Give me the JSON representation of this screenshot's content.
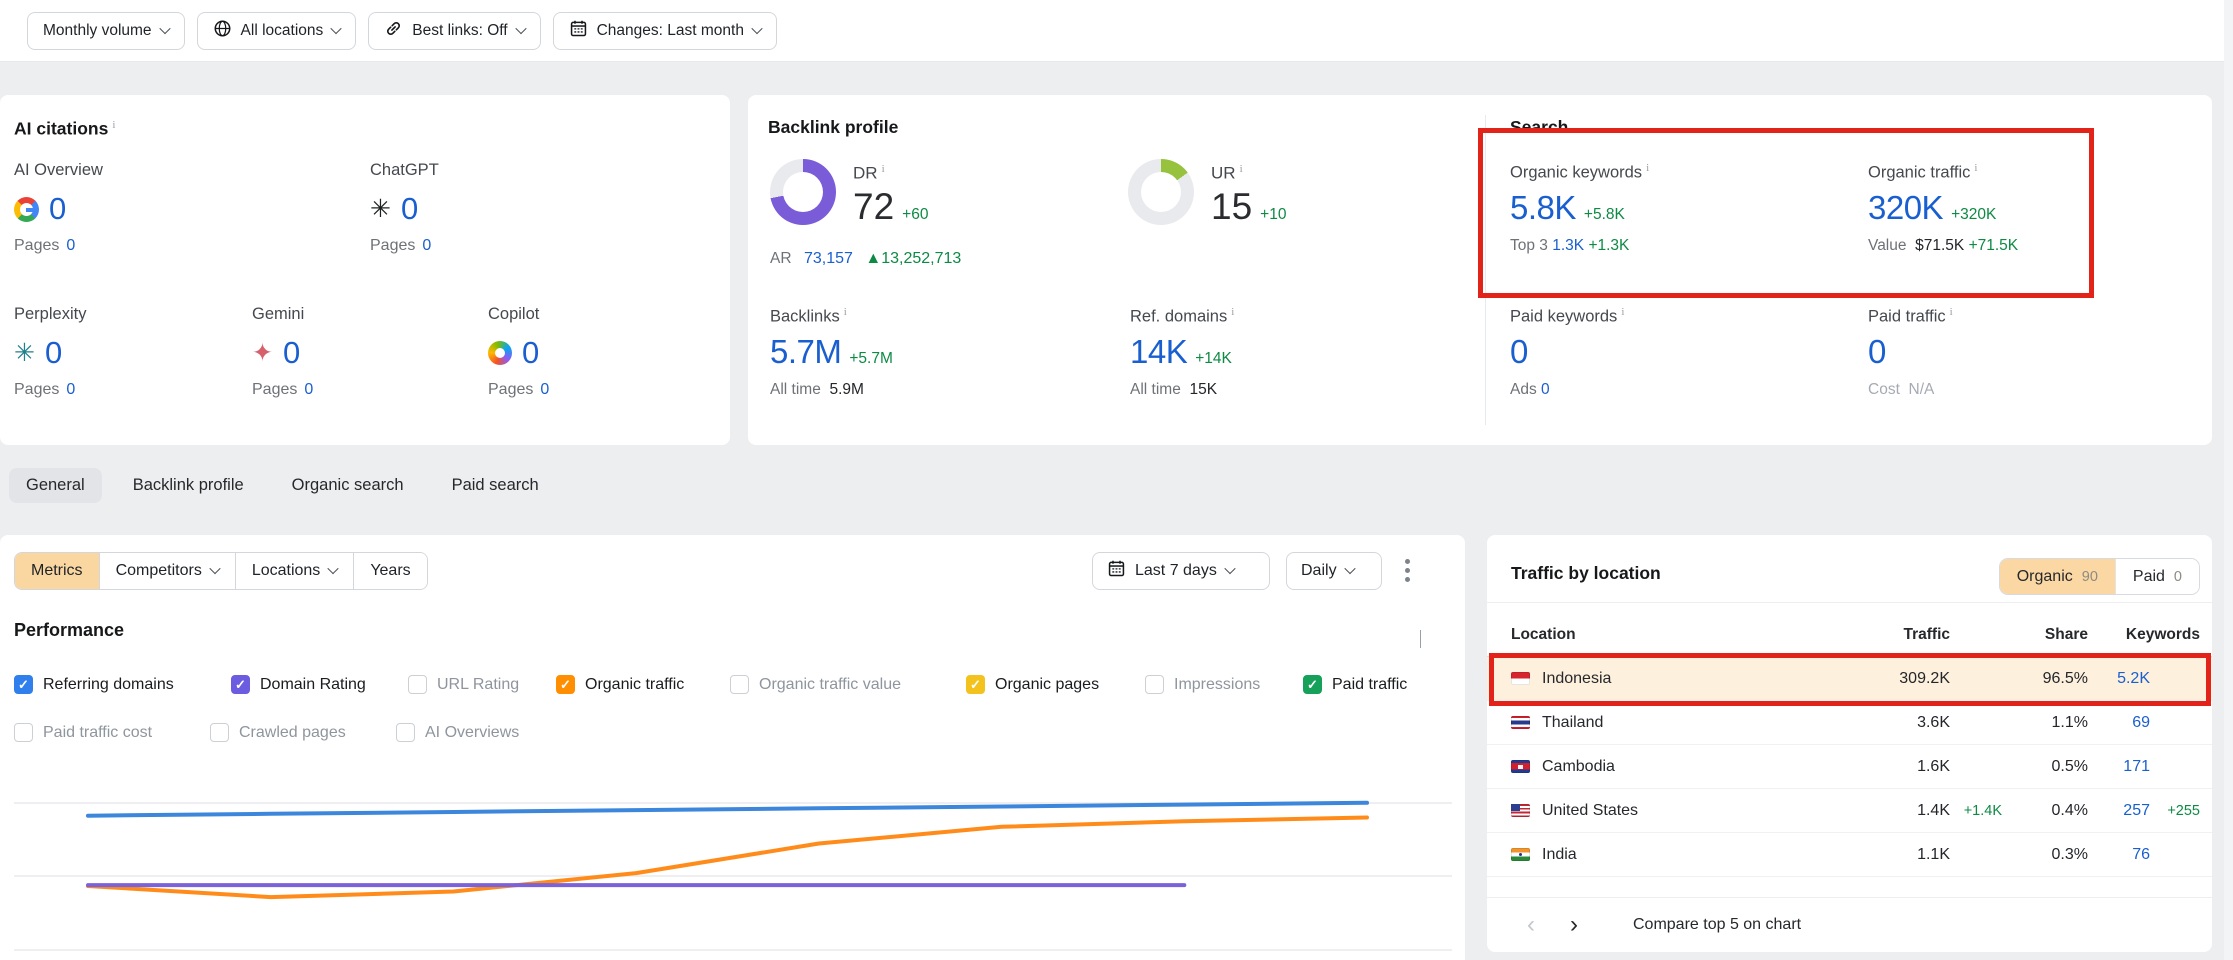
{
  "ui": {
    "topbar_filters": [
      {
        "label": "Monthly volume",
        "icon": "none"
      },
      {
        "label": "All locations",
        "icon": "globe"
      },
      {
        "label": "Best links: Off",
        "icon": "link"
      },
      {
        "label": "Changes: Last month",
        "icon": "calendar"
      }
    ],
    "tabs": {
      "items": [
        {
          "label": "General",
          "active": true
        },
        {
          "label": "Backlink profile",
          "active": false
        },
        {
          "label": "Organic search",
          "active": false
        },
        {
          "label": "Paid search",
          "active": false
        }
      ]
    }
  },
  "ai_citations": {
    "title": "AI citations",
    "pages_label": "Pages",
    "providers": [
      {
        "name": "AI Overview",
        "icon": "google-icon",
        "value": "0",
        "pages": "0"
      },
      {
        "name": "ChatGPT",
        "icon": "chatgpt-icon",
        "value": "0",
        "pages": "0"
      },
      {
        "name": "Perplexity",
        "icon": "perplexity-icon",
        "value": "0",
        "pages": "0"
      },
      {
        "name": "Gemini",
        "icon": "gemini-icon",
        "value": "0",
        "pages": "0"
      },
      {
        "name": "Copilot",
        "icon": "copilot-icon",
        "value": "0",
        "pages": "0"
      }
    ]
  },
  "backlink_profile": {
    "title": "Backlink profile",
    "dr": {
      "label": "DR",
      "value": "72",
      "delta": "+60",
      "percent": 72
    },
    "ar": {
      "label": "AR",
      "value": "73,157",
      "delta": "▲13,252,713"
    },
    "ur": {
      "label": "UR",
      "value": "15",
      "delta": "+10",
      "percent": 15
    },
    "backlinks": {
      "label": "Backlinks",
      "value": "5.7M",
      "delta": "+5.7M",
      "alltime_label": "All time",
      "alltime_value": "5.9M"
    },
    "ref_domains": {
      "label": "Ref. domains",
      "value": "14K",
      "delta": "+14K",
      "alltime_label": "All time",
      "alltime_value": "15K"
    }
  },
  "search": {
    "title": "Search",
    "organic_keywords": {
      "label": "Organic keywords",
      "value": "5.8K",
      "delta": "+5.8K",
      "sub_label": "Top 3",
      "sub_value": "1.3K",
      "sub_delta": "+1.3K"
    },
    "organic_traffic": {
      "label": "Organic traffic",
      "value": "320K",
      "delta": "+320K",
      "sub_label": "Value",
      "sub_value": "$71.5K",
      "sub_delta": "+71.5K"
    },
    "paid_keywords": {
      "label": "Paid keywords",
      "value": "0",
      "sub_label": "Ads",
      "sub_value": "0"
    },
    "paid_traffic": {
      "label": "Paid traffic",
      "value": "0",
      "sub_label": "Cost",
      "sub_value": "N/A"
    }
  },
  "controls": {
    "segments": [
      {
        "label": "Metrics",
        "active": true,
        "caret": false
      },
      {
        "label": "Competitors",
        "active": false,
        "caret": true
      },
      {
        "label": "Locations",
        "active": false,
        "caret": true
      },
      {
        "label": "Years",
        "active": false,
        "caret": false
      }
    ],
    "date_range": {
      "label": "Last 7 days"
    },
    "granularity": {
      "label": "Daily"
    }
  },
  "performance": {
    "title": "Performance",
    "metrics": [
      {
        "label": "Referring domains",
        "checked": true,
        "color": "#2f80ed",
        "row": 1
      },
      {
        "label": "Domain Rating",
        "checked": true,
        "color": "#6b5ce0",
        "row": 1
      },
      {
        "label": "URL Rating",
        "checked": false,
        "row": 1
      },
      {
        "label": "Organic traffic",
        "checked": true,
        "color": "#ff8e00",
        "row": 1
      },
      {
        "label": "Organic traffic value",
        "checked": false,
        "row": 1
      },
      {
        "label": "Organic pages",
        "checked": true,
        "color": "#f3c21d",
        "row": 1
      },
      {
        "label": "Impressions",
        "checked": false,
        "row": 1
      },
      {
        "label": "Paid traffic",
        "checked": true,
        "color": "#16a15a",
        "row": 1
      },
      {
        "label": "Paid traffic cost",
        "checked": false,
        "row": 2
      },
      {
        "label": "Crawled pages",
        "checked": false,
        "row": 2
      },
      {
        "label": "AI Overviews",
        "checked": false,
        "row": 2
      }
    ]
  },
  "chart_data": {
    "type": "line",
    "title": "Performance",
    "x": [
      0,
      1,
      2,
      3,
      4,
      5,
      6,
      7
    ],
    "x_note": "Last 7 days, daily granularity; x tick labels not visible in screenshot",
    "y_note": "values are relative heights 0-100 estimated from pixels; numeric y-axis labels not visible",
    "grid": true,
    "series": [
      {
        "name": "Referring domains",
        "color": "#3c87dc",
        "y": [
          78,
          79,
          80,
          81,
          82,
          83,
          84,
          85
        ]
      },
      {
        "name": "Organic traffic",
        "color": "#ff8c1a",
        "y": [
          40,
          34,
          37,
          47,
          63,
          72,
          75,
          77
        ]
      },
      {
        "name": "Domain Rating",
        "color": "#7b62d9",
        "y": [
          40.5,
          40.5,
          40.5,
          40.5,
          40.5,
          40.5,
          40.5,
          null
        ]
      }
    ]
  },
  "traffic_by_location": {
    "title": "Traffic by location",
    "toggle": [
      {
        "label": "Organic",
        "count": "90",
        "active": true
      },
      {
        "label": "Paid",
        "count": "0",
        "active": false
      }
    ],
    "columns": [
      "Location",
      "Traffic",
      "Share",
      "Keywords"
    ],
    "rows": [
      {
        "location": "Indonesia",
        "flag": "indonesia",
        "traffic": "309.2K",
        "traffic_delta": "",
        "share": "96.5%",
        "keywords": "5.2K",
        "keywords_delta": "",
        "highlighted": true
      },
      {
        "location": "Thailand",
        "flag": "thailand",
        "traffic": "3.6K",
        "traffic_delta": "",
        "share": "1.1%",
        "keywords": "69",
        "keywords_delta": "",
        "highlighted": false
      },
      {
        "location": "Cambodia",
        "flag": "cambodia",
        "traffic": "1.6K",
        "traffic_delta": "",
        "share": "0.5%",
        "keywords": "171",
        "keywords_delta": "",
        "highlighted": false
      },
      {
        "location": "United States",
        "flag": "united-states",
        "traffic": "1.4K",
        "traffic_delta": "+1.4K",
        "share": "0.4%",
        "keywords": "257",
        "keywords_delta": "+255",
        "highlighted": false
      },
      {
        "location": "India",
        "flag": "india",
        "traffic": "1.1K",
        "traffic_delta": "",
        "share": "0.3%",
        "keywords": "76",
        "keywords_delta": "",
        "highlighted": false
      }
    ],
    "footer": {
      "compare_label": "Compare top 5 on chart"
    }
  },
  "annotations": {
    "color": "#e2231a",
    "boxes": [
      "search-organic-metrics",
      "indonesia-row"
    ]
  },
  "colors": {
    "accent_blue": "#1a5fd0",
    "positive_green": "#0d8a44",
    "selected_pill": "#fad7a1",
    "highlight_row": "#fdf0dd",
    "dr_donut": "#7a5bd8",
    "ur_donut": "#96c23e"
  }
}
